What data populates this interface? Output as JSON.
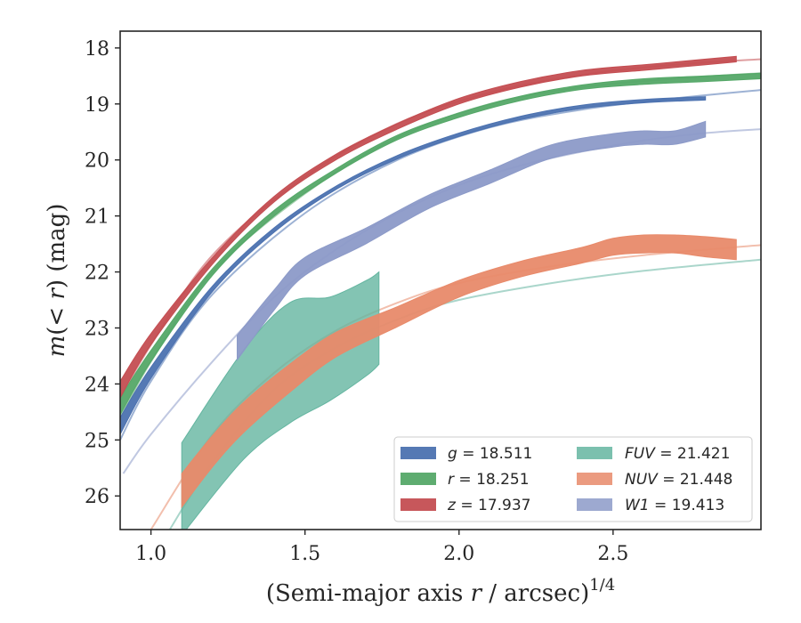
{
  "chart_data": {
    "type": "line",
    "xlabel_prefix": "(Semi-major axis ",
    "xlabel_var": "r",
    "xlabel_suffix": " / arcsec)",
    "xlabel_exp": "1/4",
    "ylabel_prefix": "m",
    "ylabel_mid": "(< ",
    "ylabel_var": "r",
    "ylabel_suffix": ") (mag)",
    "xlim": [
      0.9,
      2.98
    ],
    "ylim": [
      26.6,
      17.7
    ],
    "y_inverted": true,
    "x_ticks": [
      1.0,
      1.5,
      2.0,
      2.5
    ],
    "x_tick_labels": [
      "1.0",
      "1.5",
      "2.0",
      "2.5"
    ],
    "y_ticks": [
      18,
      19,
      20,
      21,
      22,
      23,
      24,
      25,
      26
    ],
    "y_tick_labels": [
      "18",
      "19",
      "20",
      "21",
      "22",
      "23",
      "24",
      "25",
      "26"
    ],
    "grid": false,
    "legend_position": "lower-right",
    "series": [
      {
        "name": "g",
        "value_label": "18.511",
        "color": "#4c72b0",
        "band": [
          [
            0.9,
            24.75,
            0.15
          ],
          [
            1.0,
            23.8,
            0.1
          ],
          [
            1.2,
            22.3,
            0.05
          ],
          [
            1.4,
            21.25,
            0.04
          ],
          [
            1.6,
            20.5,
            0.03
          ],
          [
            1.8,
            19.95,
            0.03
          ],
          [
            2.0,
            19.55,
            0.03
          ],
          [
            2.2,
            19.25,
            0.03
          ],
          [
            2.4,
            19.05,
            0.03
          ],
          [
            2.6,
            18.95,
            0.03
          ],
          [
            2.8,
            18.9,
            0.03
          ]
        ],
        "fit": [
          [
            0.9,
            25.0
          ],
          [
            1.0,
            23.95
          ],
          [
            1.2,
            22.4
          ],
          [
            1.5,
            20.95
          ],
          [
            1.8,
            20.0
          ],
          [
            2.1,
            19.42
          ],
          [
            2.4,
            19.1
          ],
          [
            2.7,
            18.9
          ],
          [
            2.98,
            18.75
          ]
        ]
      },
      {
        "name": "r",
        "value_label": "18.251",
        "color": "#55a868",
        "band": [
          [
            0.9,
            24.4,
            0.15
          ],
          [
            1.0,
            23.5,
            0.1
          ],
          [
            1.2,
            22.0,
            0.06
          ],
          [
            1.4,
            20.95,
            0.05
          ],
          [
            1.6,
            20.2,
            0.04
          ],
          [
            1.8,
            19.6,
            0.04
          ],
          [
            2.0,
            19.2,
            0.04
          ],
          [
            2.2,
            18.9,
            0.04
          ],
          [
            2.4,
            18.7,
            0.04
          ],
          [
            2.6,
            18.6,
            0.05
          ],
          [
            2.8,
            18.55,
            0.05
          ],
          [
            2.98,
            18.5,
            0.05
          ]
        ],
        "fit": [
          [
            0.9,
            24.6
          ],
          [
            1.0,
            23.6
          ],
          [
            1.2,
            22.0
          ],
          [
            1.5,
            20.6
          ],
          [
            1.8,
            19.6
          ],
          [
            2.1,
            19.0
          ],
          [
            2.4,
            18.7
          ],
          [
            2.7,
            18.55
          ],
          [
            2.98,
            18.45
          ]
        ]
      },
      {
        "name": "z",
        "value_label": "17.937",
        "color": "#c44e52",
        "band": [
          [
            0.9,
            24.1,
            0.15
          ],
          [
            1.0,
            23.2,
            0.1
          ],
          [
            1.2,
            21.8,
            0.06
          ],
          [
            1.4,
            20.7,
            0.05
          ],
          [
            1.6,
            19.95,
            0.05
          ],
          [
            1.8,
            19.4,
            0.05
          ],
          [
            2.0,
            18.95,
            0.05
          ],
          [
            2.2,
            18.65,
            0.05
          ],
          [
            2.4,
            18.45,
            0.05
          ],
          [
            2.6,
            18.35,
            0.05
          ],
          [
            2.7,
            18.3,
            0.05
          ],
          [
            2.9,
            18.2,
            0.05
          ]
        ],
        "fit": [
          [
            0.9,
            24.25
          ],
          [
            1.0,
            23.3
          ],
          [
            1.2,
            21.7
          ],
          [
            1.5,
            20.3
          ],
          [
            1.8,
            19.35
          ],
          [
            2.1,
            18.8
          ],
          [
            2.4,
            18.48
          ],
          [
            2.7,
            18.3
          ],
          [
            2.98,
            18.2
          ]
        ]
      },
      {
        "name": "FUV",
        "value_label": "21.421",
        "color": "#64b5a0",
        "band_minmax": [
          [
            1.1,
            25.05,
            26.7
          ],
          [
            1.3,
            23.4,
            25.35
          ],
          [
            1.45,
            22.55,
            24.7
          ],
          [
            1.58,
            22.45,
            24.3
          ],
          [
            1.7,
            22.15,
            23.85
          ],
          [
            1.74,
            22.0,
            23.65
          ]
        ],
        "fit": [
          [
            1.05,
            26.7
          ],
          [
            1.2,
            25.4
          ],
          [
            1.4,
            24.1
          ],
          [
            1.6,
            23.35
          ],
          [
            1.8,
            22.85
          ],
          [
            2.0,
            22.5
          ],
          [
            2.3,
            22.2
          ],
          [
            2.6,
            21.98
          ],
          [
            2.98,
            21.78
          ]
        ]
      },
      {
        "name": "NUV",
        "value_label": "21.448",
        "color": "#e88a6a",
        "band": [
          [
            1.1,
            25.9,
            0.3
          ],
          [
            1.2,
            25.2,
            0.28
          ],
          [
            1.3,
            24.6,
            0.27
          ],
          [
            1.45,
            23.9,
            0.25
          ],
          [
            1.6,
            23.3,
            0.22
          ],
          [
            1.8,
            22.8,
            0.18
          ],
          [
            2.0,
            22.3,
            0.15
          ],
          [
            2.2,
            21.95,
            0.14
          ],
          [
            2.4,
            21.7,
            0.14
          ],
          [
            2.5,
            21.55,
            0.15
          ],
          [
            2.6,
            21.5,
            0.16
          ],
          [
            2.7,
            21.5,
            0.16
          ],
          [
            2.8,
            21.55,
            0.18
          ],
          [
            2.9,
            21.6,
            0.18
          ]
        ],
        "fit": [
          [
            1.0,
            26.6
          ],
          [
            1.2,
            24.9
          ],
          [
            1.4,
            23.8
          ],
          [
            1.6,
            23.05
          ],
          [
            1.8,
            22.55
          ],
          [
            2.0,
            22.2
          ],
          [
            2.3,
            21.9
          ],
          [
            2.6,
            21.7
          ],
          [
            2.98,
            21.52
          ]
        ]
      },
      {
        "name": "W1",
        "value_label": "19.413",
        "color": "#8c9ac8",
        "band": [
          [
            1.28,
            23.35,
            0.22
          ],
          [
            1.4,
            22.5,
            0.18
          ],
          [
            1.5,
            21.9,
            0.16
          ],
          [
            1.7,
            21.35,
            0.14
          ],
          [
            1.9,
            20.75,
            0.12
          ],
          [
            2.1,
            20.3,
            0.12
          ],
          [
            2.3,
            19.85,
            0.12
          ],
          [
            2.5,
            19.65,
            0.12
          ],
          [
            2.6,
            19.6,
            0.12
          ],
          [
            2.7,
            19.6,
            0.12
          ],
          [
            2.8,
            19.45,
            0.14
          ]
        ],
        "fit": [
          [
            0.91,
            25.6
          ],
          [
            1.0,
            24.9
          ],
          [
            1.2,
            23.6
          ],
          [
            1.4,
            22.45
          ],
          [
            1.6,
            21.6
          ],
          [
            1.8,
            20.95
          ],
          [
            2.0,
            20.45
          ],
          [
            2.2,
            20.1
          ],
          [
            2.4,
            19.85
          ],
          [
            2.6,
            19.65
          ],
          [
            2.8,
            19.52
          ],
          [
            2.98,
            19.45
          ]
        ]
      }
    ]
  }
}
